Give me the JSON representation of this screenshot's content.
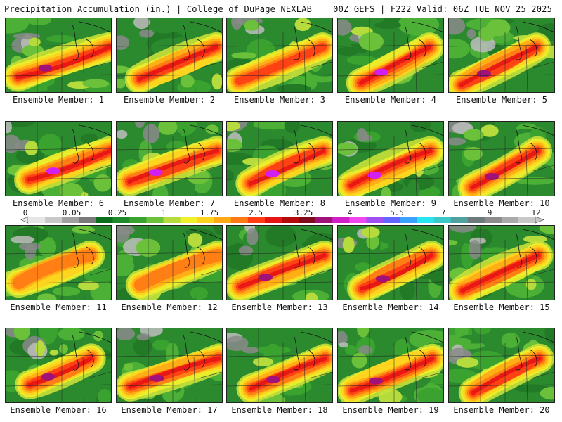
{
  "header": {
    "left": "Precipitation Accumulation (in.) | College of DuPage NEXLAB",
    "right": "00Z GEFS | F222 Valid: 06Z TUE NOV 25 2025"
  },
  "panels": [
    {
      "label": "Ensemble Member: 1"
    },
    {
      "label": "Ensemble Member: 2"
    },
    {
      "label": "Ensemble Member: 3"
    },
    {
      "label": "Ensemble Member: 4"
    },
    {
      "label": "Ensemble Member: 5"
    },
    {
      "label": "Ensemble Member: 6"
    },
    {
      "label": "Ensemble Member: 7"
    },
    {
      "label": "Ensemble Member: 8"
    },
    {
      "label": "Ensemble Member: 9"
    },
    {
      "label": "Ensemble Member: 10"
    },
    {
      "label": "Ensemble Member: 11"
    },
    {
      "label": "Ensemble Member: 12"
    },
    {
      "label": "Ensemble Member: 13"
    },
    {
      "label": "Ensemble Member: 14"
    },
    {
      "label": "Ensemble Member: 15"
    },
    {
      "label": "Ensemble Member: 16"
    },
    {
      "label": "Ensemble Member: 17"
    },
    {
      "label": "Ensemble Member: 18"
    },
    {
      "label": "Ensemble Member: 19"
    },
    {
      "label": "Ensemble Member: 20"
    }
  ],
  "colorbar": {
    "tick_labels": [
      "0",
      "0.05",
      "0.25",
      "1",
      "1.75",
      "2.5",
      "3.25",
      "4",
      "5.5",
      "7",
      "9",
      "12"
    ],
    "colors": [
      "#e6e6e6",
      "#c8c8c8",
      "#a0a0a0",
      "#7a7a7a",
      "#0b6e1c",
      "#1f8a2a",
      "#3aa32f",
      "#6cc13a",
      "#b5dc3c",
      "#f0f02a",
      "#ffd21e",
      "#ffaa14",
      "#ff7a14",
      "#ff3c14",
      "#e61414",
      "#b40a0a",
      "#820a1e",
      "#a0127a",
      "#d21ec8",
      "#f046f0",
      "#a050f0",
      "#6464ff",
      "#3ca0ff",
      "#28e6f0",
      "#3cc8c8",
      "#50a0a0",
      "#6e7a7a",
      "#8c8c8c",
      "#aaaaaa",
      "#c8c8c8"
    ]
  }
}
